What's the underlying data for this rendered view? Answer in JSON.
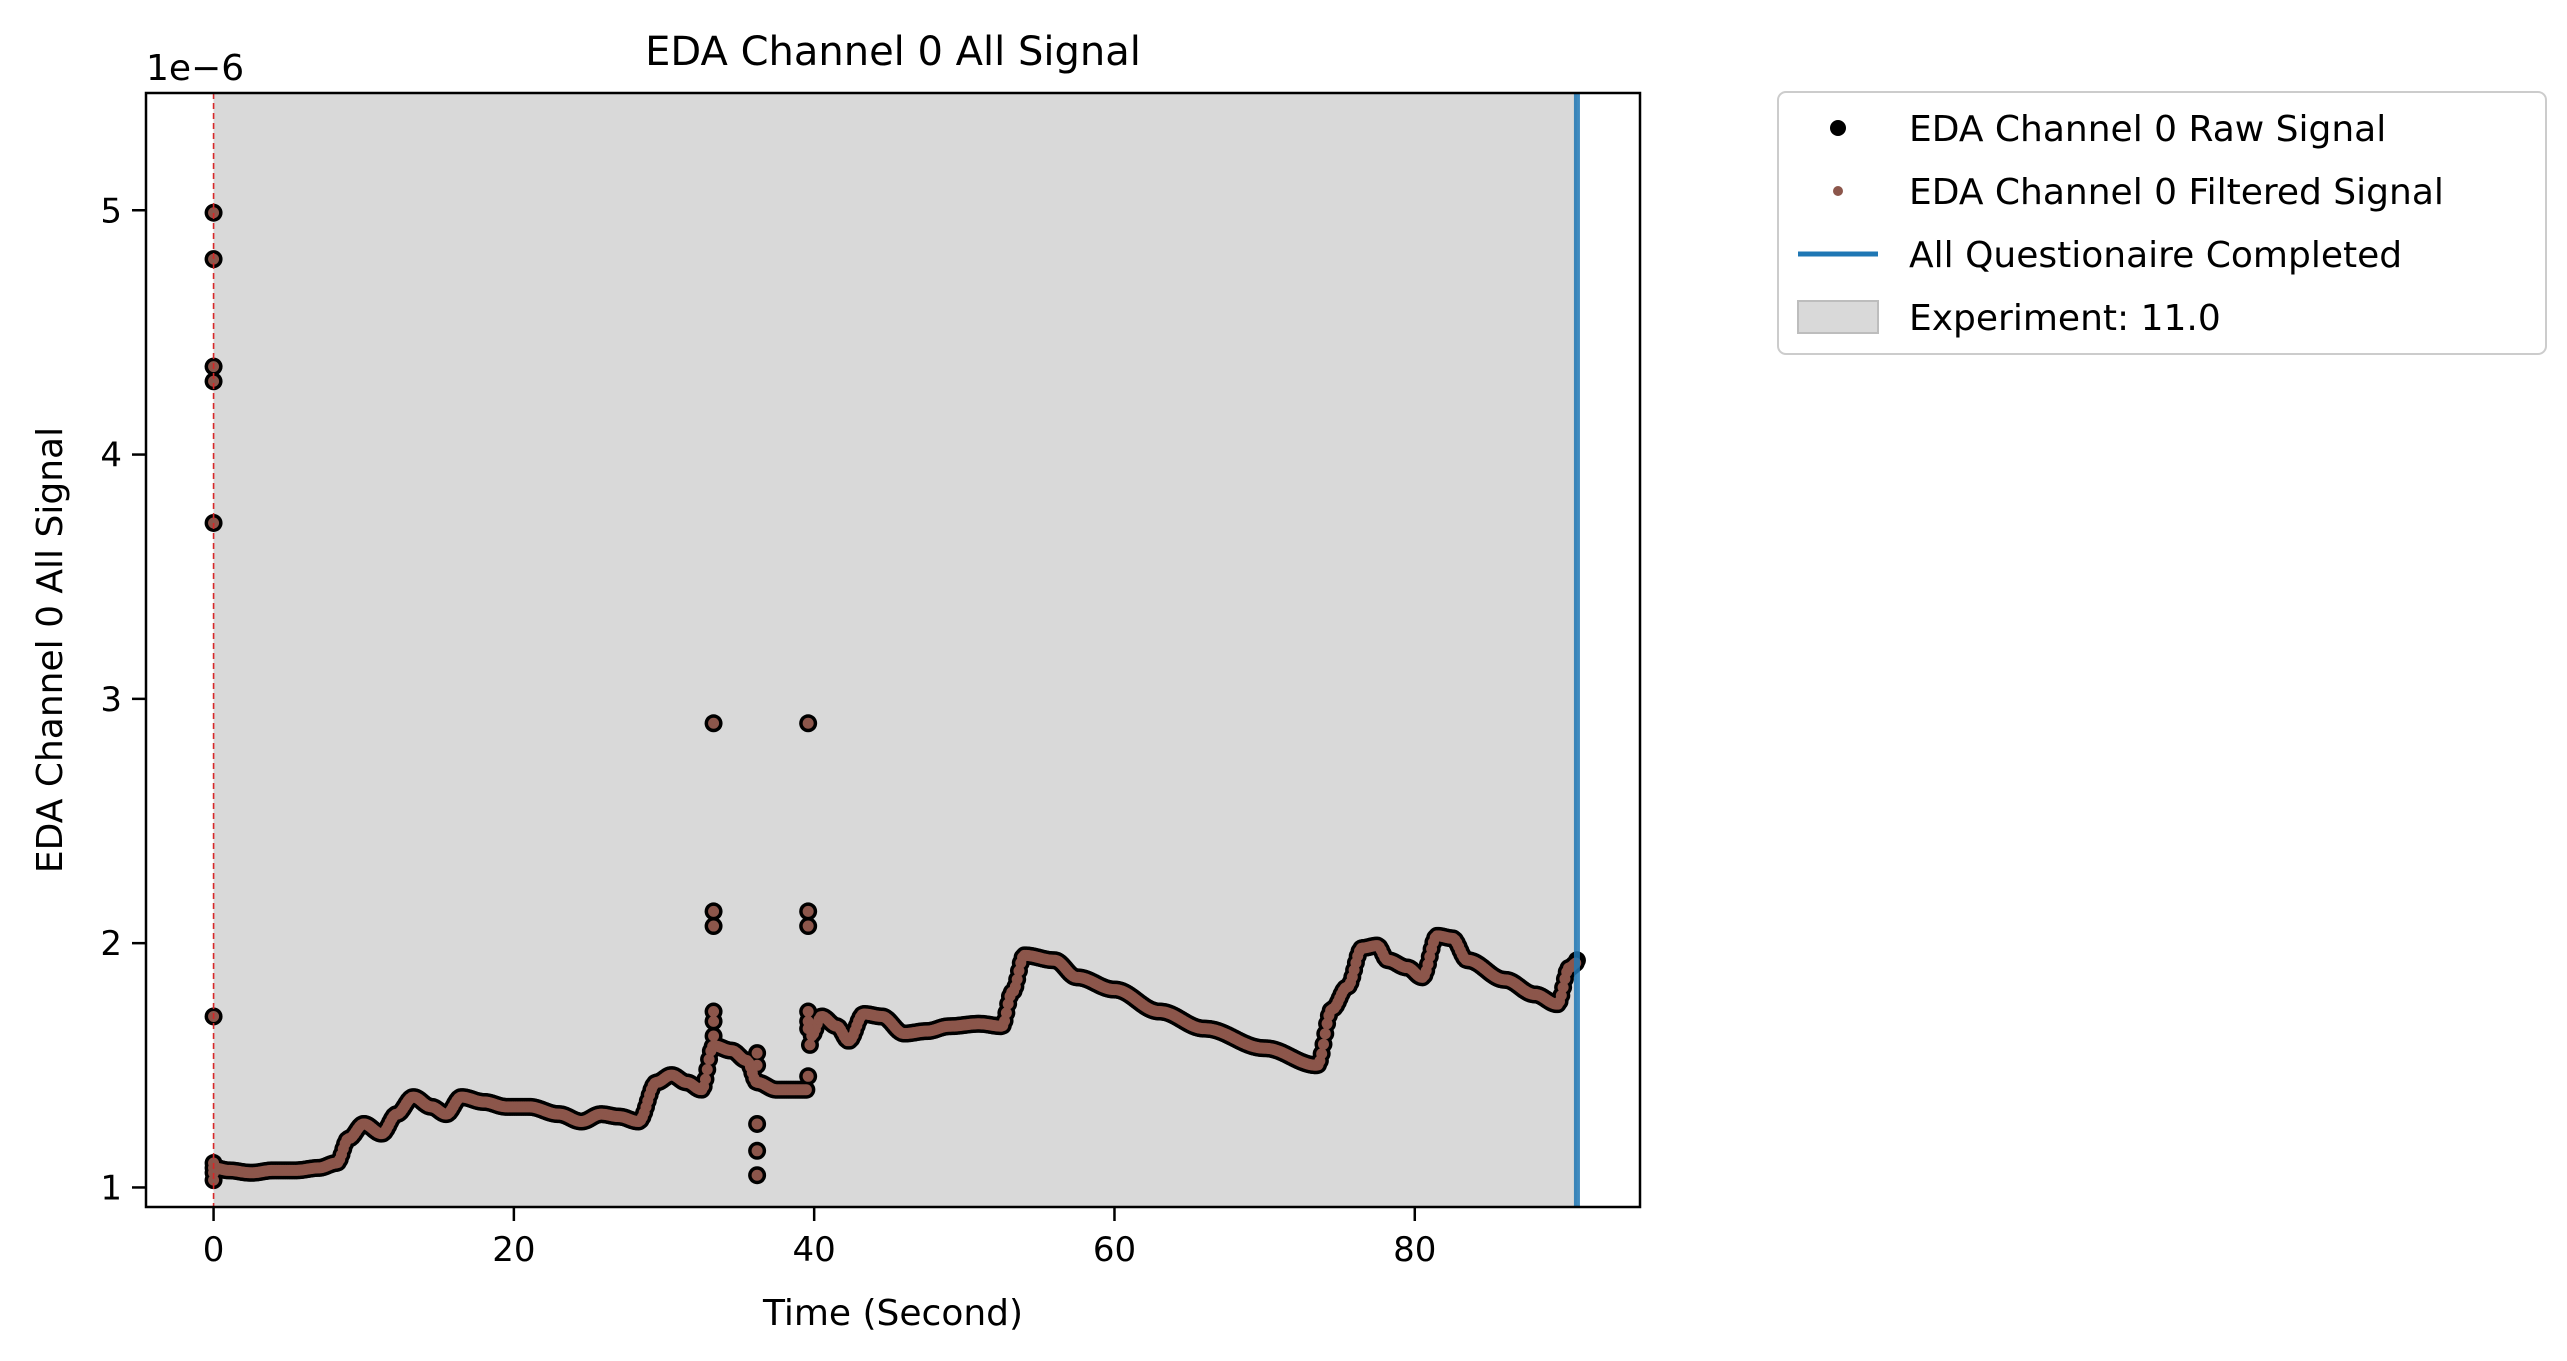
{
  "chart_data": {
    "type": "scatter",
    "title": "EDA Channel 0 All Signal",
    "xlabel": "Time (Second)",
    "ylabel": "EDA Channel 0 All Signal",
    "y_offset_label": "1e−6",
    "xlim": [
      -4.5,
      95.0
    ],
    "ylim": [
      0.92,
      5.48
    ],
    "y_scale_factor": "1e-6",
    "xticks": [
      0,
      20,
      40,
      60,
      80
    ],
    "xtick_labels": [
      "0",
      "20",
      "40",
      "60",
      "80"
    ],
    "yticks": [
      1,
      2,
      3,
      4,
      5
    ],
    "ytick_labels": [
      "1",
      "2",
      "3",
      "4",
      "5"
    ],
    "grid": false,
    "legend_position": "outside-right-top",
    "colors": {
      "raw": "#000000",
      "filtered": "#8c564b",
      "questionnaire": "#1f77b4",
      "experiment_fill": "#d9d9d9",
      "start_line": "#d62728"
    },
    "legend": [
      {
        "label": "EDA Channel 0 Raw Signal",
        "kind": "marker",
        "color": "#000000"
      },
      {
        "label": "EDA Channel 0 Filtered Signal",
        "kind": "small-marker",
        "color": "#8c564b"
      },
      {
        "label": "All Questionaire Completed",
        "kind": "line",
        "color": "#1f77b4"
      },
      {
        "label": "Experiment: 11.0",
        "kind": "patch",
        "color": "#d9d9d9"
      }
    ],
    "experiment_span": [
      0.0,
      90.8
    ],
    "start_marker_x": 0.0,
    "questionnaire_completed_x": 90.8,
    "signal_knots": [
      [
        0.0,
        1.08
      ],
      [
        1.0,
        1.07
      ],
      [
        2.5,
        1.06
      ],
      [
        4.0,
        1.07
      ],
      [
        5.5,
        1.07
      ],
      [
        7.0,
        1.08
      ],
      [
        8.2,
        1.1
      ],
      [
        9.0,
        1.2
      ],
      [
        10.0,
        1.26
      ],
      [
        11.2,
        1.22
      ],
      [
        12.2,
        1.3
      ],
      [
        13.3,
        1.37
      ],
      [
        14.5,
        1.33
      ],
      [
        15.5,
        1.3
      ],
      [
        16.5,
        1.37
      ],
      [
        18.0,
        1.35
      ],
      [
        19.5,
        1.33
      ],
      [
        21.0,
        1.33
      ],
      [
        23.0,
        1.3
      ],
      [
        24.5,
        1.27
      ],
      [
        25.8,
        1.3
      ],
      [
        27.0,
        1.29
      ],
      [
        28.3,
        1.27
      ],
      [
        29.5,
        1.43
      ],
      [
        30.5,
        1.46
      ],
      [
        31.5,
        1.43
      ],
      [
        32.5,
        1.4
      ],
      [
        33.3,
        1.58
      ],
      [
        34.5,
        1.56
      ],
      [
        35.5,
        1.52
      ],
      [
        36.2,
        1.43
      ],
      [
        37.5,
        1.4
      ],
      [
        39.5,
        1.4
      ],
      [
        39.8,
        1.62
      ],
      [
        40.5,
        1.7
      ],
      [
        41.5,
        1.66
      ],
      [
        42.3,
        1.6
      ],
      [
        43.3,
        1.71
      ],
      [
        44.5,
        1.7
      ],
      [
        46.0,
        1.63
      ],
      [
        47.5,
        1.64
      ],
      [
        49.0,
        1.66
      ],
      [
        51.0,
        1.67
      ],
      [
        52.5,
        1.66
      ],
      [
        53.2,
        1.8
      ],
      [
        54.0,
        1.95
      ],
      [
        56.0,
        1.93
      ],
      [
        57.5,
        1.86
      ],
      [
        60.0,
        1.81
      ],
      [
        63.0,
        1.72
      ],
      [
        66.0,
        1.65
      ],
      [
        70.0,
        1.57
      ],
      [
        73.5,
        1.5
      ],
      [
        74.5,
        1.73
      ],
      [
        75.5,
        1.82
      ],
      [
        76.5,
        1.98
      ],
      [
        77.5,
        1.99
      ],
      [
        78.2,
        1.93
      ],
      [
        79.5,
        1.9
      ],
      [
        80.5,
        1.86
      ],
      [
        81.5,
        2.03
      ],
      [
        82.5,
        2.02
      ],
      [
        83.5,
        1.93
      ],
      [
        86.0,
        1.85
      ],
      [
        88.0,
        1.79
      ],
      [
        89.5,
        1.75
      ],
      [
        90.3,
        1.9
      ],
      [
        90.8,
        1.92
      ]
    ],
    "raw_outliers": [
      {
        "x": 0.0,
        "y": 4.99
      },
      {
        "x": 0.0,
        "y": 4.8
      },
      {
        "x": 0.0,
        "y": 4.36
      },
      {
        "x": 0.0,
        "y": 4.3
      },
      {
        "x": 0.0,
        "y": 3.72
      },
      {
        "x": 0.0,
        "y": 1.7
      },
      {
        "x": 0.0,
        "y": 1.1
      },
      {
        "x": 0.0,
        "y": 1.06
      },
      {
        "x": 0.0,
        "y": 1.03
      },
      {
        "x": 33.3,
        "y": 2.9
      },
      {
        "x": 33.3,
        "y": 2.13
      },
      {
        "x": 33.3,
        "y": 2.07
      },
      {
        "x": 33.3,
        "y": 1.72
      },
      {
        "x": 33.3,
        "y": 1.68
      },
      {
        "x": 33.3,
        "y": 1.62
      },
      {
        "x": 36.2,
        "y": 1.55
      },
      {
        "x": 36.2,
        "y": 1.5
      },
      {
        "x": 36.2,
        "y": 1.26
      },
      {
        "x": 36.2,
        "y": 1.15
      },
      {
        "x": 36.2,
        "y": 1.05
      },
      {
        "x": 39.6,
        "y": 2.9
      },
      {
        "x": 39.6,
        "y": 2.13
      },
      {
        "x": 39.6,
        "y": 2.07
      },
      {
        "x": 39.6,
        "y": 1.72
      },
      {
        "x": 39.6,
        "y": 1.68
      },
      {
        "x": 39.6,
        "y": 1.65
      },
      {
        "x": 90.8,
        "y": 1.93
      }
    ]
  }
}
